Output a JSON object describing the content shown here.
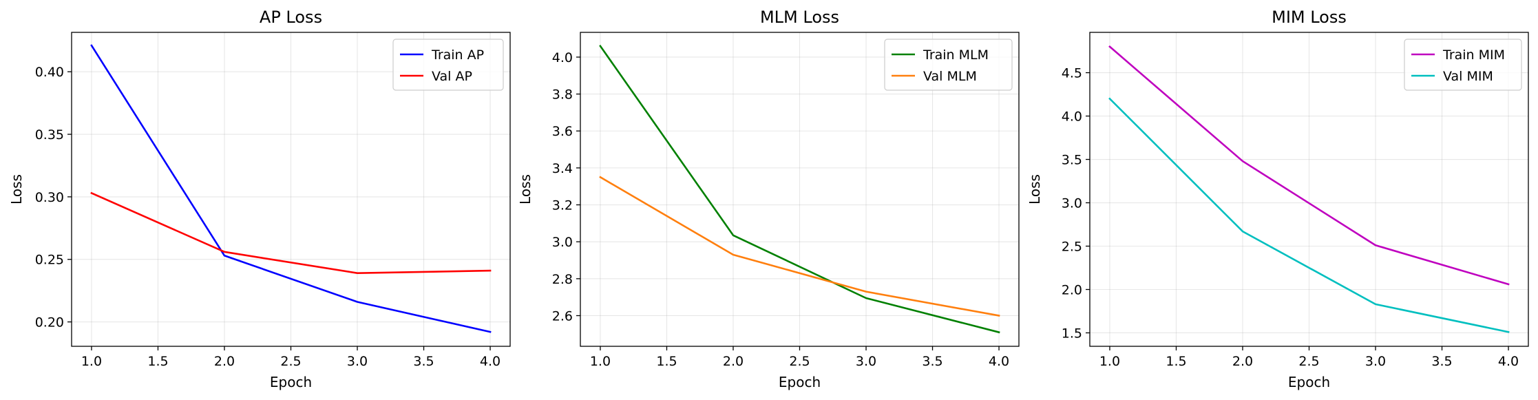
{
  "chart_data": [
    {
      "type": "line",
      "title": "AP Loss",
      "xlabel": "Epoch",
      "ylabel": "Loss",
      "x": [
        1.0,
        2.0,
        3.0,
        4.0
      ],
      "xlim": [
        0.85,
        4.15
      ],
      "ylim": [
        0.1805,
        0.4315
      ],
      "xticks": [
        "1.0",
        "1.5",
        "2.0",
        "2.5",
        "3.0",
        "3.5",
        "4.0"
      ],
      "yticks": [
        "0.20",
        "0.25",
        "0.30",
        "0.35",
        "0.40"
      ],
      "grid": true,
      "legend": "top-right",
      "series": [
        {
          "name": "Train AP",
          "color": "#0000ff",
          "values": [
            0.421,
            0.253,
            0.216,
            0.192
          ]
        },
        {
          "name": "Val AP",
          "color": "#ff0000",
          "values": [
            0.303,
            0.256,
            0.239,
            0.241
          ]
        }
      ]
    },
    {
      "type": "line",
      "title": "MLM Loss",
      "xlabel": "Epoch",
      "ylabel": "Loss",
      "x": [
        1.0,
        2.0,
        3.0,
        4.0
      ],
      "xlim": [
        0.85,
        4.15
      ],
      "ylim": [
        2.434,
        4.134
      ],
      "xticks": [
        "1.0",
        "1.5",
        "2.0",
        "2.5",
        "3.0",
        "3.5",
        "4.0"
      ],
      "yticks": [
        "2.6",
        "2.8",
        "3.0",
        "3.2",
        "3.4",
        "3.6",
        "3.8",
        "4.0"
      ],
      "grid": true,
      "legend": "top-right",
      "series": [
        {
          "name": "Train MLM",
          "color": "#008000",
          "values": [
            4.06,
            3.035,
            2.695,
            2.51
          ]
        },
        {
          "name": "Val MLM",
          "color": "#ff7f0e",
          "values": [
            3.35,
            2.93,
            2.73,
            2.6
          ]
        }
      ]
    },
    {
      "type": "line",
      "title": "MIM Loss",
      "xlabel": "Epoch",
      "ylabel": "Loss",
      "x": [
        1.0,
        2.0,
        3.0,
        4.0
      ],
      "xlim": [
        0.85,
        4.15
      ],
      "ylim": [
        1.345,
        4.965
      ],
      "xticks": [
        "1.0",
        "1.5",
        "2.0",
        "2.5",
        "3.0",
        "3.5",
        "4.0"
      ],
      "yticks": [
        "1.5",
        "2.0",
        "2.5",
        "3.0",
        "3.5",
        "4.0",
        "4.5"
      ],
      "grid": true,
      "legend": "top-right",
      "series": [
        {
          "name": "Train MIM",
          "color": "#bf00bf",
          "values": [
            4.8,
            3.48,
            2.51,
            2.06
          ]
        },
        {
          "name": "Val MIM",
          "color": "#00bfbf",
          "values": [
            4.2,
            2.67,
            1.83,
            1.51
          ]
        }
      ]
    }
  ]
}
